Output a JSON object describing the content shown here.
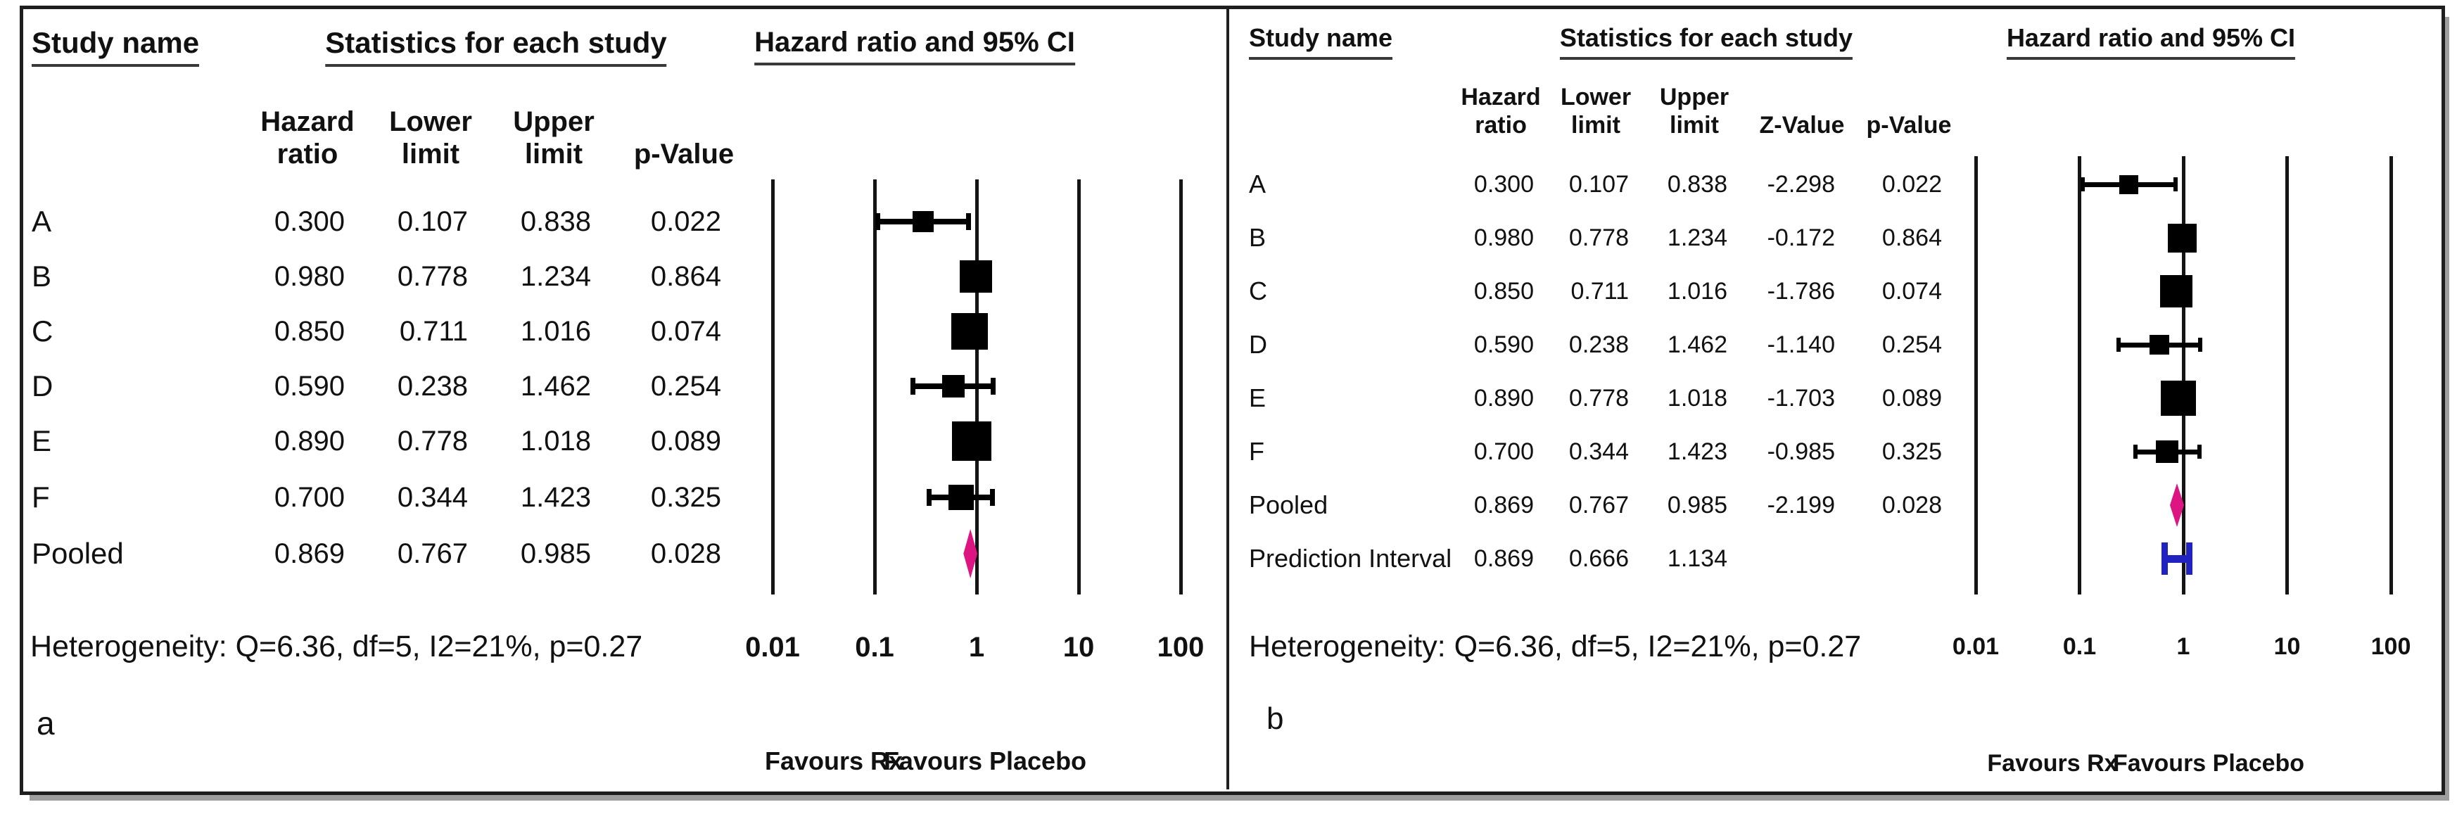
{
  "figure": {
    "background": "#ffffff",
    "border_color": "#1e1e1e",
    "shadow_color": "#9e9e9e"
  },
  "chart_data": [
    {
      "type": "forest",
      "panel_label": "a",
      "title": "Hazard ratio and 95% CI",
      "study_col_header": "Study name",
      "stats_group_header": "Statistics for each study",
      "columns": [
        "Hazard\nratio",
        "Lower\nlimit",
        "Upper\nlimit",
        "p-Value"
      ],
      "x_axis": {
        "scale": "log",
        "ticks": [
          0.01,
          0.1,
          1,
          10,
          100
        ],
        "tick_labels": [
          "0.01",
          "0.1",
          "1",
          "10",
          "100"
        ]
      },
      "footer_left": "Favours Rx",
      "footer_right": "Favours Placebo",
      "heterogeneity": "Heterogeneity: Q=6.36, df=5, I2=21%, p=0.27",
      "marker_colors": {
        "square": "#000000",
        "diamond": "#dd1583",
        "interval_bar": "#2222c0"
      },
      "rows": [
        {
          "name": "A",
          "marker": "square",
          "hr": 0.3,
          "lower": 0.107,
          "upper": 0.838,
          "values": [
            "0.300",
            "0.107",
            "0.838",
            "0.022"
          ],
          "size": 30
        },
        {
          "name": "B",
          "marker": "square",
          "hr": 0.98,
          "lower": 0.778,
          "upper": 1.234,
          "values": [
            "0.980",
            "0.778",
            "1.234",
            "0.864"
          ],
          "size": 46
        },
        {
          "name": "C",
          "marker": "square",
          "hr": 0.85,
          "lower": 0.711,
          "upper": 1.016,
          "values": [
            "0.850",
            "0.711",
            "1.016",
            "0.074"
          ],
          "size": 52
        },
        {
          "name": "D",
          "marker": "square",
          "hr": 0.59,
          "lower": 0.238,
          "upper": 1.462,
          "values": [
            "0.590",
            "0.238",
            "1.462",
            "0.254"
          ],
          "size": 32
        },
        {
          "name": "E",
          "marker": "square",
          "hr": 0.89,
          "lower": 0.778,
          "upper": 1.018,
          "values": [
            "0.890",
            "0.778",
            "1.018",
            "0.089"
          ],
          "size": 56
        },
        {
          "name": "F",
          "marker": "square",
          "hr": 0.7,
          "lower": 0.344,
          "upper": 1.423,
          "values": [
            "0.700",
            "0.344",
            "1.423",
            "0.325"
          ],
          "size": 36
        },
        {
          "name": "Pooled",
          "marker": "diamond",
          "hr": 0.869,
          "lower": 0.767,
          "upper": 0.985,
          "values": [
            "0.869",
            "0.767",
            "0.985",
            "0.028"
          ]
        }
      ]
    },
    {
      "type": "forest",
      "panel_label": "b",
      "title": "Hazard ratio and 95% CI",
      "study_col_header": "Study name",
      "stats_group_header": "Statistics for each study",
      "columns": [
        "Hazard\nratio",
        "Lower\nlimit",
        "Upper\nlimit",
        "Z-Value",
        "p-Value"
      ],
      "x_axis": {
        "scale": "log",
        "ticks": [
          0.01,
          0.1,
          1,
          10,
          100
        ],
        "tick_labels": [
          "0.01",
          "0.1",
          "1",
          "10",
          "100"
        ]
      },
      "footer_left": "Favours Rx",
      "footer_right": "Favours Placebo",
      "heterogeneity": "Heterogeneity: Q=6.36, df=5, I2=21%, p=0.27",
      "marker_colors": {
        "square": "#000000",
        "diamond": "#dd1583",
        "interval_bar": "#2222c0"
      },
      "rows": [
        {
          "name": "A",
          "marker": "square",
          "hr": 0.3,
          "lower": 0.107,
          "upper": 0.838,
          "values": [
            "0.300",
            "0.107",
            "0.838",
            "-2.298",
            "0.022"
          ],
          "size": 27
        },
        {
          "name": "B",
          "marker": "square",
          "hr": 0.98,
          "lower": 0.778,
          "upper": 1.234,
          "values": [
            "0.980",
            "0.778",
            "1.234",
            "-0.172",
            "0.864"
          ],
          "size": 41
        },
        {
          "name": "C",
          "marker": "square",
          "hr": 0.85,
          "lower": 0.711,
          "upper": 1.016,
          "values": [
            "0.850",
            "0.711",
            "1.016",
            "-1.786",
            "0.074"
          ],
          "size": 46
        },
        {
          "name": "D",
          "marker": "square",
          "hr": 0.59,
          "lower": 0.238,
          "upper": 1.462,
          "values": [
            "0.590",
            "0.238",
            "1.462",
            "-1.140",
            "0.254"
          ],
          "size": 28
        },
        {
          "name": "E",
          "marker": "square",
          "hr": 0.89,
          "lower": 0.778,
          "upper": 1.018,
          "values": [
            "0.890",
            "0.778",
            "1.018",
            "-1.703",
            "0.089"
          ],
          "size": 50
        },
        {
          "name": "F",
          "marker": "square",
          "hr": 0.7,
          "lower": 0.344,
          "upper": 1.423,
          "values": [
            "0.700",
            "0.344",
            "1.423",
            "-0.985",
            "0.325"
          ],
          "size": 32
        },
        {
          "name": "Pooled",
          "marker": "diamond",
          "hr": 0.869,
          "lower": 0.767,
          "upper": 0.985,
          "values": [
            "0.869",
            "0.767",
            "0.985",
            "-2.199",
            "0.028"
          ]
        },
        {
          "name": "Prediction Interval",
          "marker": "interval_bar",
          "hr": 0.869,
          "lower": 0.666,
          "upper": 1.134,
          "values": [
            "0.869",
            "0.666",
            "1.134",
            "",
            ""
          ]
        }
      ]
    }
  ]
}
